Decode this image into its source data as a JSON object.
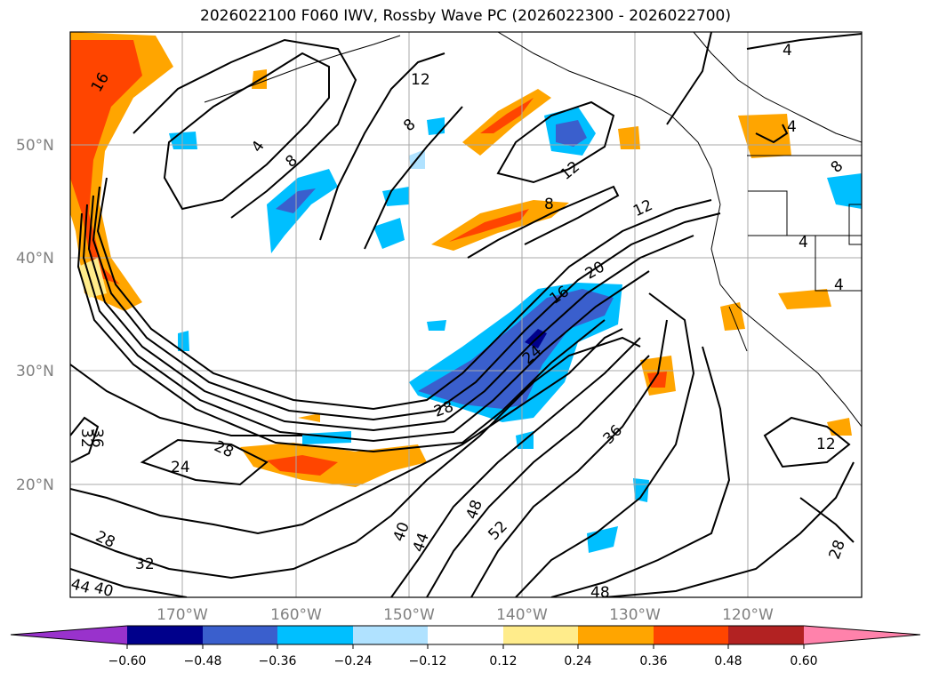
{
  "title": "2026022100 F060 IWV, Rossby Wave PC (2026022300 - 2026022700)",
  "latitude_labels": [
    "50°N",
    "40°N",
    "30°N",
    "20°N"
  ],
  "longitude_labels": [
    "170°W",
    "160°W",
    "150°W",
    "140°W",
    "130°W",
    "120°W"
  ],
  "colorbar": {
    "ticks": [
      "−0.60",
      "−0.48",
      "−0.36",
      "−0.24",
      "−0.12",
      "0.12",
      "0.24",
      "0.36",
      "0.48",
      "0.60"
    ],
    "colors": [
      "#9932cc",
      "#00008b",
      "#3a5fcd",
      "#00bfff",
      "#b0e2ff",
      "#ffffff",
      "#ffec8b",
      "#ffa500",
      "#ff4500",
      "#b22222",
      "#ff82ab"
    ]
  },
  "contour_labels": [
    "4",
    "8",
    "12",
    "12",
    "4",
    "8",
    "12",
    "16",
    "20",
    "24",
    "28",
    "36",
    "40",
    "44",
    "48",
    "52",
    "48",
    "28",
    "32",
    "28",
    "36",
    "24",
    "28",
    "32",
    "44",
    "40",
    "16",
    "12",
    "4",
    "4",
    "4",
    "8"
  ]
}
